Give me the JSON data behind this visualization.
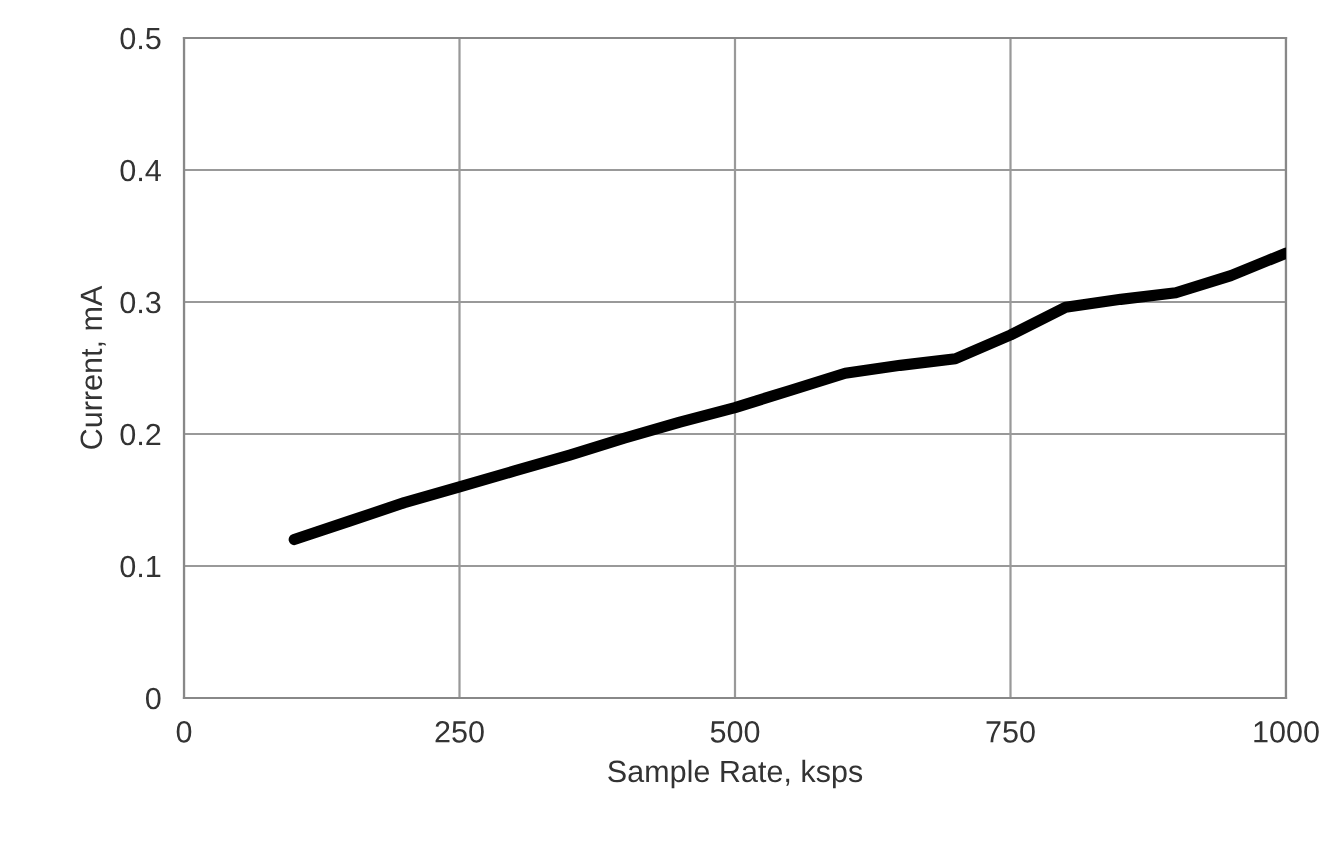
{
  "chart_data": {
    "type": "line",
    "xlabel": "Sample Rate, ksps",
    "ylabel": "Current, mA",
    "x": [
      100,
      150,
      200,
      250,
      300,
      350,
      400,
      450,
      500,
      550,
      600,
      650,
      700,
      750,
      800,
      850,
      900,
      950,
      1000
    ],
    "series": [
      {
        "color": "#000000",
        "values": [
          0.12,
          0.134,
          0.148,
          0.16,
          0.172,
          0.184,
          0.197,
          0.209,
          0.22,
          0.233,
          0.246,
          0.252,
          0.257,
          0.275,
          0.296,
          0.302,
          0.307,
          0.32,
          0.337
        ]
      }
    ],
    "xlim": [
      0,
      1000
    ],
    "xticks": [
      0,
      250,
      500,
      750,
      1000
    ],
    "ylim": [
      0,
      0.5
    ],
    "yticks": [
      {
        "value": 0,
        "label": "0"
      },
      0.1,
      0.2,
      0.3,
      0.4,
      0.5
    ],
    "grid": true,
    "marker": "none",
    "line_style": "solid"
  }
}
